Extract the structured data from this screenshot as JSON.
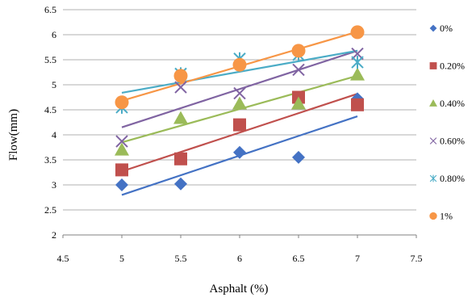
{
  "chart_data": {
    "type": "scatter",
    "title": "",
    "xlabel": "Asphalt (%)",
    "ylabel": "Flow(mm)",
    "xlim": [
      4.5,
      7.5
    ],
    "ylim": [
      2,
      6.5
    ],
    "x_ticks": [
      "4.5",
      "5",
      "5.5",
      "6",
      "6.5",
      "7",
      "7.5"
    ],
    "y_ticks": [
      "2",
      "2.5",
      "3",
      "3.5",
      "4",
      "4.5",
      "5",
      "5.5",
      "6",
      "6.5"
    ],
    "grid": "horizontal",
    "legend_position": "right",
    "series": [
      {
        "name": "0%",
        "marker": "diamond",
        "color": "#4472C4",
        "x": [
          5,
          5.5,
          6,
          6.5,
          7
        ],
        "y": [
          3.0,
          3.02,
          3.65,
          3.55,
          4.72
        ],
        "trend": [
          [
            5,
            2.8
          ],
          [
            7,
            4.37
          ]
        ]
      },
      {
        "name": "0.20%",
        "marker": "square",
        "color": "#C0504D",
        "x": [
          5,
          5.5,
          6,
          6.5,
          7
        ],
        "y": [
          3.3,
          3.52,
          4.2,
          4.75,
          4.6
        ],
        "trend": [
          [
            5,
            3.27
          ],
          [
            7,
            4.82
          ]
        ]
      },
      {
        "name": "0.40%",
        "marker": "triangle",
        "color": "#9BBB59",
        "x": [
          5,
          5.5,
          6,
          6.5,
          7
        ],
        "y": [
          3.7,
          4.33,
          4.62,
          4.62,
          5.2
        ],
        "trend": [
          [
            5,
            3.85
          ],
          [
            7,
            5.18
          ]
        ]
      },
      {
        "name": "0.60%",
        "marker": "x",
        "color": "#8064A2",
        "x": [
          5,
          5.5,
          6,
          6.5,
          7
        ],
        "y": [
          3.87,
          4.95,
          4.83,
          5.3,
          5.62
        ],
        "trend": [
          [
            5,
            4.15
          ],
          [
            7,
            5.68
          ]
        ]
      },
      {
        "name": "0.80%",
        "marker": "star",
        "color": "#4BACC6",
        "x": [
          5,
          5.5,
          6,
          6.5,
          7
        ],
        "y": [
          4.55,
          5.22,
          5.52,
          5.6,
          5.45
        ],
        "trend": [
          [
            5,
            4.84
          ],
          [
            7,
            5.68
          ]
        ]
      },
      {
        "name": "1%",
        "marker": "circle",
        "color": "#F79646",
        "x": [
          5,
          5.5,
          6,
          6.5,
          7
        ],
        "y": [
          4.65,
          5.18,
          5.4,
          5.68,
          6.05
        ],
        "trend": [
          [
            5,
            4.68
          ],
          [
            7,
            6.06
          ]
        ]
      }
    ]
  }
}
